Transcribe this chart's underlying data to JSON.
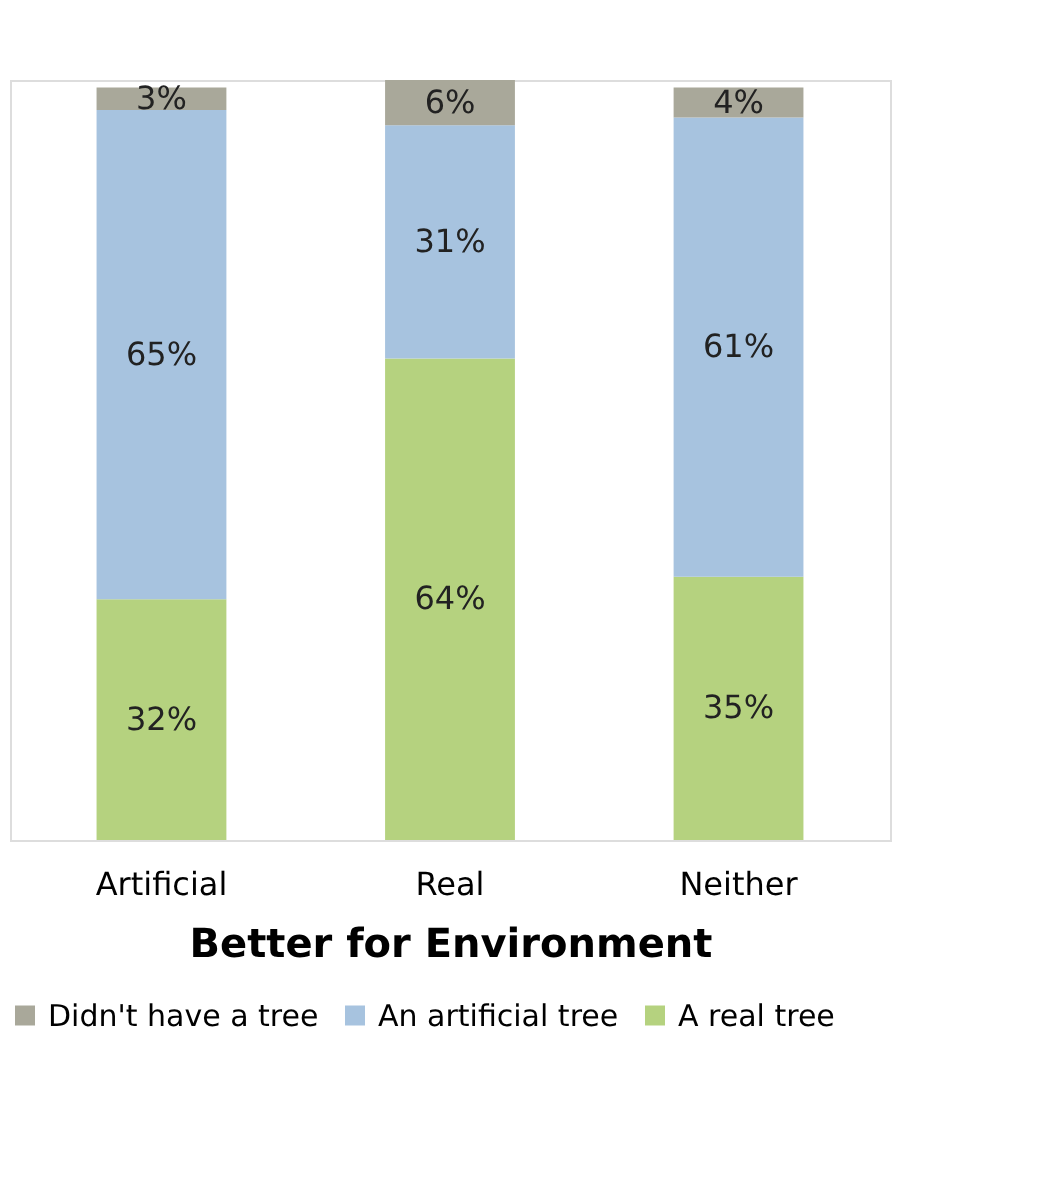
{
  "chart_data": {
    "type": "bar",
    "stacked": true,
    "xlabel": "Better for Environment",
    "legend": "bottom",
    "grid": false,
    "categories": [
      "Artificial",
      "Real",
      "Neither"
    ],
    "series": [
      {
        "name": "A real tree",
        "color": "#b5d27f",
        "values": [
          32,
          64,
          35
        ],
        "value_labels": [
          "32%",
          "64%",
          "35%"
        ]
      },
      {
        "name": "An artificial tree",
        "color": "#a7c3df",
        "values": [
          65,
          31,
          61
        ],
        "value_labels": [
          "65%",
          "31%",
          "61%"
        ]
      },
      {
        "name": "Didn't have a tree",
        "color": "#a9a89a",
        "values": [
          3,
          6,
          4
        ],
        "value_labels": [
          "3%",
          "6%",
          "4%"
        ]
      }
    ]
  }
}
